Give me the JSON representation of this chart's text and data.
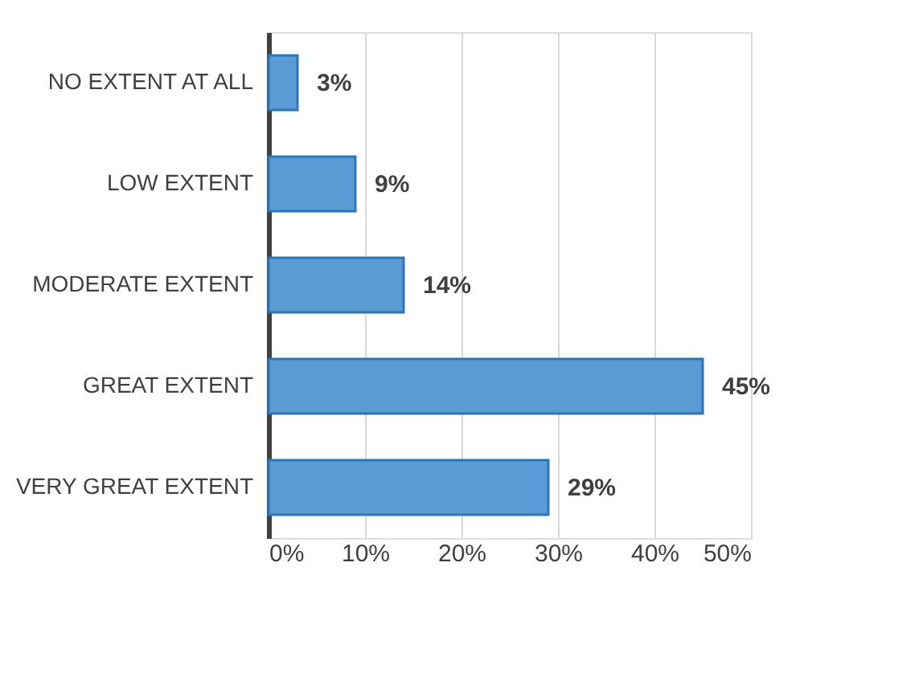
{
  "chart_data": {
    "type": "bar",
    "orientation": "horizontal",
    "categories": [
      "NO EXTENT AT ALL",
      "LOW EXTENT",
      "MODERATE EXTENT",
      "GREAT EXTENT",
      "VERY GREAT EXTENT"
    ],
    "values": [
      3,
      9,
      14,
      45,
      29
    ],
    "value_labels": [
      "3%",
      "9%",
      "14%",
      "45%",
      "29%"
    ],
    "color": "#5b9bd5",
    "xlim": [
      0,
      50
    ],
    "xticks": [
      {
        "value": 0,
        "label": "0%"
      },
      {
        "value": 10,
        "label": "10%"
      },
      {
        "value": 20,
        "label": "20%"
      },
      {
        "value": 30,
        "label": "30%"
      },
      {
        "value": 40,
        "label": "40%"
      },
      {
        "value": 50,
        "label": "50%"
      }
    ],
    "grid": "x"
  }
}
